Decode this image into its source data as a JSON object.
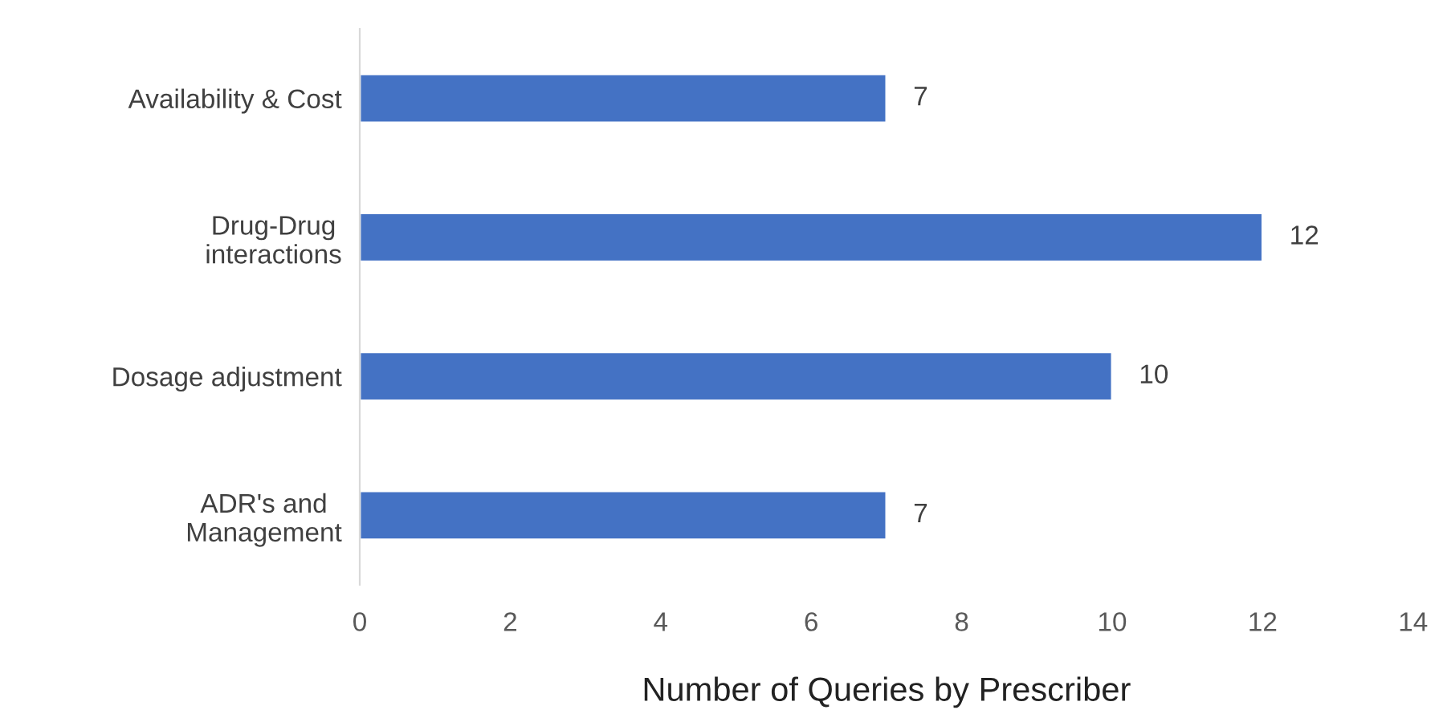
{
  "chart_data": {
    "type": "bar",
    "orientation": "horizontal",
    "xlabel": "Number of Queries by Prescriber",
    "categories": [
      "Availability & Cost",
      "Drug-Drug\ninteractions",
      "Dosage adjustment",
      "ADR's and\nManagement"
    ],
    "values": [
      7,
      12,
      10,
      7
    ],
    "color": "#4472c4",
    "xlim": [
      0,
      14
    ],
    "xticks": [
      0,
      2,
      4,
      6,
      8,
      10,
      12,
      14
    ],
    "data_labels": true,
    "grid": false,
    "legend": false
  }
}
